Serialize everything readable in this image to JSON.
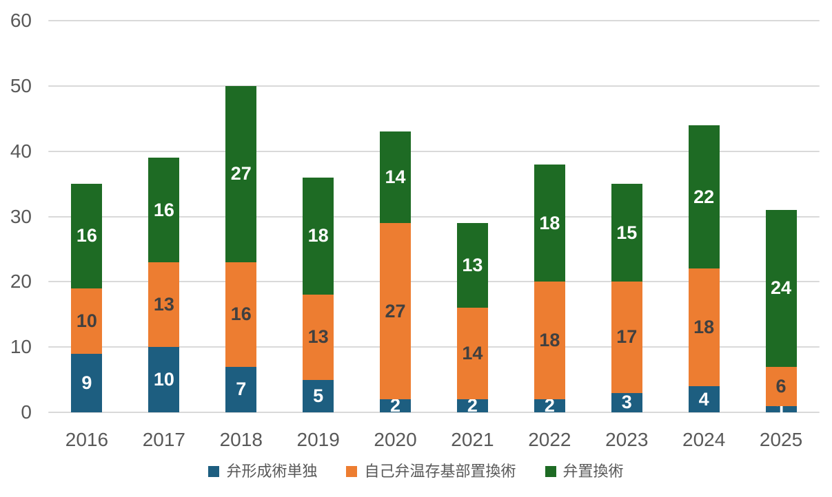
{
  "chart_data": {
    "type": "bar",
    "stacked": true,
    "title": "",
    "xlabel": "",
    "ylabel": "",
    "categories": [
      "2016",
      "2017",
      "2018",
      "2019",
      "2020",
      "2021",
      "2022",
      "2023",
      "2024",
      "2025"
    ],
    "series": [
      {
        "name": "弁形成術単独",
        "color": "#1d5e80",
        "label_color": "#ffffff",
        "values": [
          9,
          10,
          7,
          5,
          2,
          2,
          2,
          3,
          4,
          1
        ]
      },
      {
        "name": "自己弁温存基部置換術",
        "color": "#ed7d31",
        "label_color": "#404040",
        "values": [
          10,
          13,
          16,
          13,
          27,
          14,
          18,
          17,
          18,
          6
        ]
      },
      {
        "name": "弁置換術",
        "color": "#1e6b24",
        "label_color": "#ffffff",
        "values": [
          16,
          16,
          27,
          18,
          14,
          13,
          18,
          15,
          22,
          24
        ]
      }
    ],
    "ylim": [
      0,
      60
    ],
    "yticks": [
      0,
      10,
      20,
      30,
      40,
      50,
      60
    ],
    "grid": true,
    "legend_position": "bottom",
    "colors": {
      "axis_text": "#595959",
      "gridline": "#d9d9d9",
      "background": "#ffffff"
    }
  }
}
